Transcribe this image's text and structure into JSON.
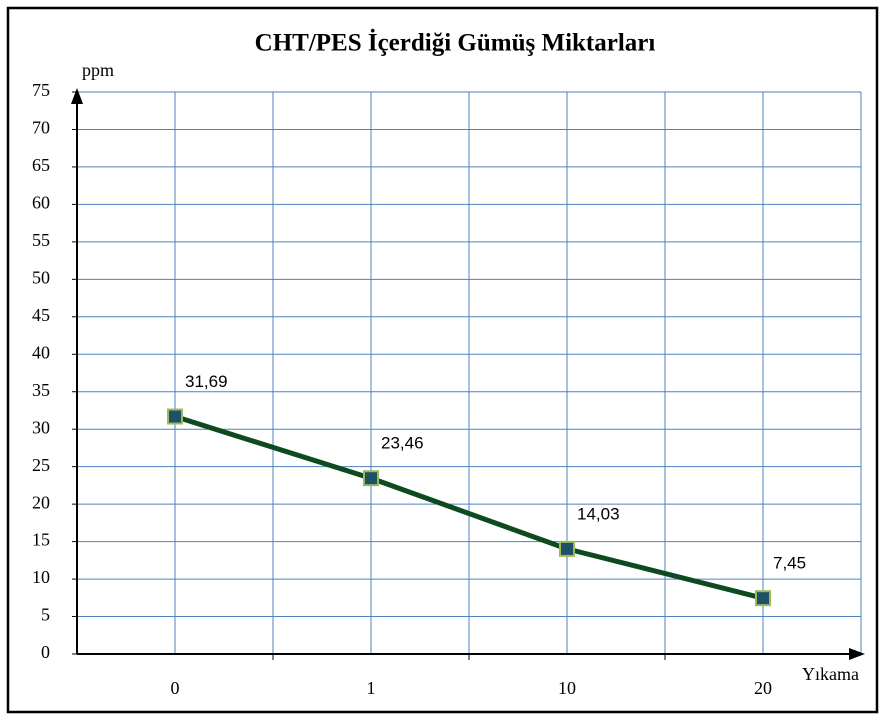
{
  "chart_data": {
    "type": "line",
    "title": "CHT/PES İçerdiği Gümüş Miktarları",
    "y_axis_label": "ppm",
    "x_axis_label": "Yıkama",
    "categories": [
      "0",
      "1",
      "10",
      "20"
    ],
    "series": [
      {
        "color": "#0e4a1f",
        "marker_color": "#1f5068",
        "marker_edge": "#9bbb59",
        "values": [
          31.69,
          23.46,
          14.03,
          7.45
        ],
        "value_labels": [
          "31,69",
          "23,46",
          "14,03",
          "7,45"
        ]
      }
    ],
    "ylim": [
      0,
      75
    ],
    "yticks": [
      0,
      5,
      10,
      15,
      20,
      25,
      30,
      35,
      40,
      45,
      50,
      55,
      60,
      65,
      70,
      75
    ],
    "grid": true,
    "grid_color": "#4f81bd"
  }
}
